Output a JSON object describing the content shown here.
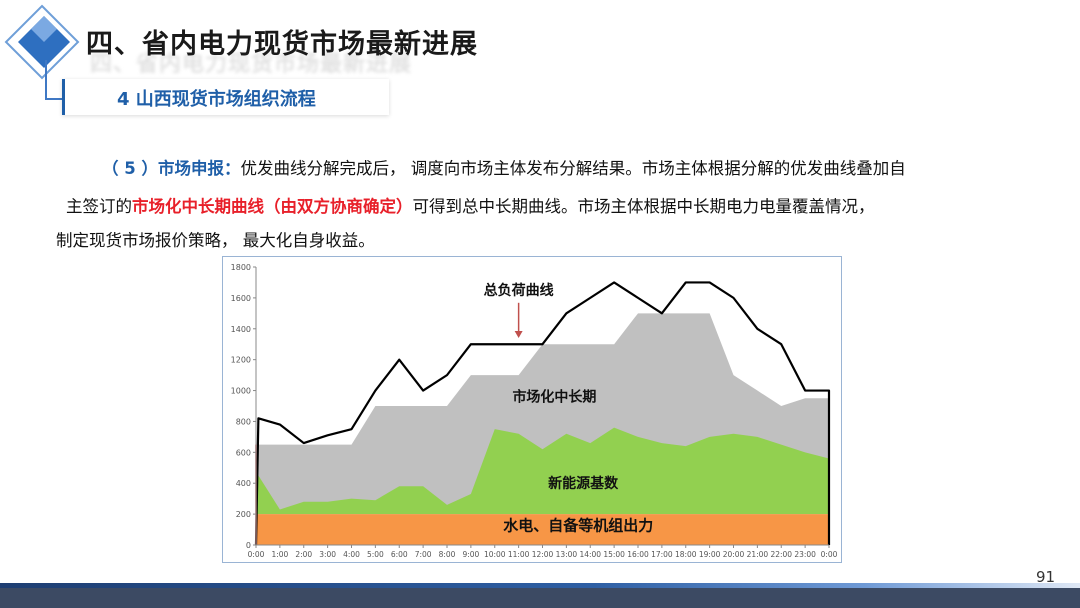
{
  "header": {
    "title": "四、省内电力现货市场最新进展",
    "subtitle": "4 山西现货市场组织流程"
  },
  "paragraph": {
    "lead": "（ 5 ）市场申报：",
    "line1_rest": "优发曲线分解完成后， 调度向市场主体发布分解结果。市场主体根据分解的优发曲线叠加自",
    "line2_start": "主签订的",
    "line2_red": "市场化中长期曲线（由双方协商确定）",
    "line2_rest": "可得到总中长期曲线。市场主体根据中长期电力电量覆盖情况，",
    "line3": "制定现货市场报价策略， 最大化自身收益。"
  },
  "page_number": "91",
  "colors": {
    "hydro": "#f79646",
    "renewable": "#92d050",
    "contract": "#c0c0c0",
    "load_line": "#000000",
    "arrow": "#c0504d",
    "accent": "#1f5fa8"
  },
  "chart_data": {
    "type": "area",
    "title": "",
    "xlabel": "",
    "ylabel": "",
    "ylim": [
      0,
      1800
    ],
    "yticks": [
      "0",
      "200",
      "400",
      "600",
      "800",
      "1000",
      "1200",
      "1400",
      "1600",
      "1800"
    ],
    "xlim": [
      0,
      24
    ],
    "xticks": [
      "0:00",
      "1:00",
      "2:00",
      "3:00",
      "4:00",
      "5:00",
      "6:00",
      "7:00",
      "8:00",
      "9:00",
      "10:00",
      "11:00",
      "12:00",
      "13:00",
      "14:00",
      "15:00",
      "16:00",
      "17:00",
      "18:00",
      "19:00",
      "20:00",
      "21:00",
      "22:00",
      "23:00",
      "0:00"
    ],
    "grid": false,
    "series": [
      {
        "name": "水电、自备等机组出力",
        "kind": "area",
        "x": [
          0,
          24
        ],
        "y": [
          200,
          200
        ]
      },
      {
        "name": "新能源基数",
        "kind": "area",
        "x": [
          0,
          0.1,
          1,
          2,
          3,
          4,
          5,
          6,
          7,
          8,
          9,
          10,
          11,
          12,
          13,
          14,
          15,
          16,
          17,
          18,
          19,
          20,
          21,
          22,
          23,
          24,
          24
        ],
        "y": [
          200,
          450,
          230,
          280,
          280,
          300,
          290,
          380,
          380,
          260,
          330,
          750,
          720,
          620,
          720,
          660,
          760,
          700,
          660,
          640,
          700,
          720,
          700,
          650,
          600,
          560,
          200
        ]
      },
      {
        "name": "市场化中长期",
        "kind": "area",
        "x": [
          0,
          0.1,
          1,
          2,
          3,
          4,
          5,
          6,
          7,
          8,
          9,
          10,
          11,
          12,
          13,
          14,
          15,
          16,
          17,
          18,
          19,
          20,
          21,
          22,
          23,
          24,
          24
        ],
        "y": [
          200,
          650,
          650,
          650,
          650,
          650,
          900,
          900,
          900,
          900,
          1100,
          1100,
          1100,
          1300,
          1300,
          1300,
          1300,
          1500,
          1500,
          1500,
          1500,
          1100,
          1000,
          900,
          950,
          950,
          200
        ]
      },
      {
        "name": "总负荷曲线",
        "kind": "line",
        "x": [
          0,
          0.1,
          1,
          2,
          3,
          4,
          5,
          6,
          7,
          8,
          9,
          10,
          11,
          12,
          13,
          14,
          15,
          16,
          17,
          18,
          19,
          20,
          21,
          22,
          23,
          24,
          24
        ],
        "y": [
          0,
          820,
          780,
          660,
          710,
          750,
          1000,
          1200,
          1000,
          1100,
          1300,
          1300,
          1300,
          1300,
          1500,
          1600,
          1700,
          1600,
          1500,
          1700,
          1700,
          1600,
          1400,
          1300,
          1000,
          1000,
          0
        ]
      }
    ],
    "annotations": [
      {
        "text": "总负荷曲线",
        "x": 11,
        "y": 1620,
        "arrow_to": [
          11,
          1340
        ]
      },
      {
        "text": "市场化中长期",
        "x": 12.5,
        "y": 930
      },
      {
        "text": "新能源基数",
        "x": 13.7,
        "y": 370
      },
      {
        "text": "水电、自备等机组出力",
        "x": 13.5,
        "y": 95
      }
    ]
  }
}
